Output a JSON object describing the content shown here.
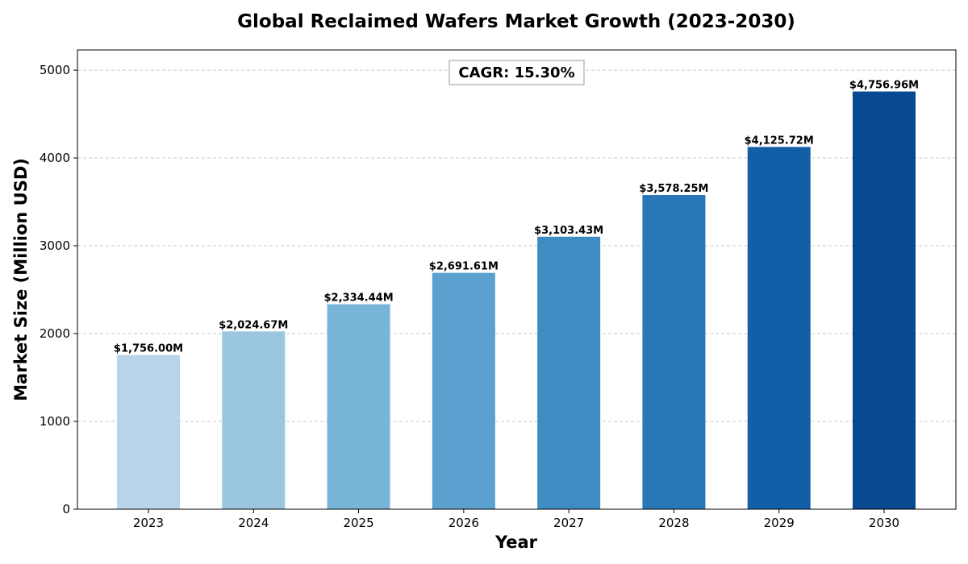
{
  "chart_data": {
    "type": "bar",
    "title": "Global Reclaimed Wafers Market Growth (2023-2030)",
    "xlabel": "Year",
    "ylabel": "Market Size (Million USD)",
    "categories": [
      "2023",
      "2024",
      "2025",
      "2026",
      "2027",
      "2028",
      "2029",
      "2030"
    ],
    "values": [
      1756.0,
      2024.67,
      2334.44,
      2691.61,
      3103.43,
      3578.25,
      4125.72,
      4756.96
    ],
    "data_labels": [
      "$1,756.00M",
      "$2,024.67M",
      "$2,334.44M",
      "$2,691.61M",
      "$3,103.43M",
      "$3,578.25M",
      "$4,125.72M",
      "$4,756.96M"
    ],
    "bar_colors": [
      "#b9d4e9",
      "#9ac7df",
      "#77b4d8",
      "#5aa1cf",
      "#3f8cc3",
      "#2a77b8",
      "#135fa7",
      "#084a91"
    ],
    "ylim": [
      0,
      5230
    ],
    "yticks": [
      0,
      1000,
      2000,
      3000,
      4000,
      5000
    ],
    "grid": "y-dashed",
    "annotation": "CAGR: 15.30%"
  }
}
